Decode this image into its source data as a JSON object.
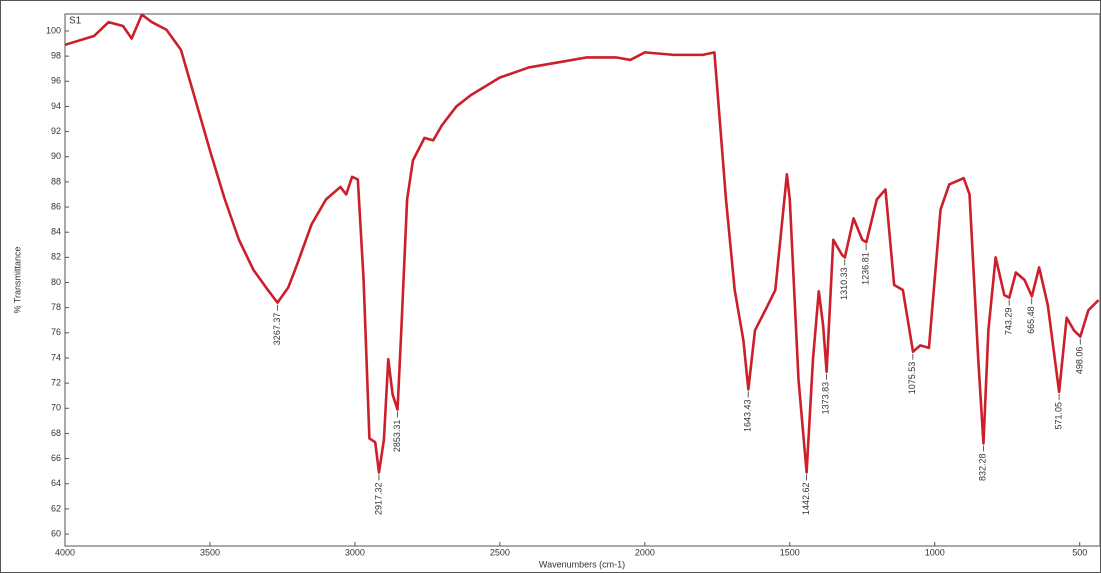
{
  "chart_data": {
    "type": "line",
    "title": "S1",
    "x_label": "Wavenumbers (cm-1)",
    "y_label": "% Transmittance",
    "x": [
      4000,
      3900,
      3850,
      3800,
      3770,
      3735,
      3700,
      3650,
      3600,
      3550,
      3500,
      3450,
      3400,
      3350,
      3300,
      3267,
      3230,
      3200,
      3150,
      3100,
      3050,
      3030,
      3010,
      2990,
      2970,
      2950,
      2930,
      2917,
      2900,
      2885,
      2870,
      2853,
      2840,
      2820,
      2800,
      2760,
      2730,
      2700,
      2650,
      2600,
      2500,
      2400,
      2300,
      2200,
      2100,
      2050,
      2000,
      1900,
      1800,
      1760,
      1720,
      1690,
      1660,
      1643,
      1620,
      1580,
      1550,
      1510,
      1500,
      1470,
      1442,
      1420,
      1400,
      1385,
      1373,
      1350,
      1320,
      1310,
      1280,
      1250,
      1236,
      1200,
      1170,
      1140,
      1110,
      1075,
      1050,
      1020,
      980,
      950,
      900,
      880,
      850,
      832,
      815,
      790,
      760,
      743,
      720,
      690,
      665,
      640,
      610,
      571,
      545,
      520,
      498,
      470,
      435
    ],
    "series": [
      {
        "name": "S1",
        "color": "#cc1f2a",
        "values": [
          98.9,
          99.6,
          100.7,
          100.4,
          99.4,
          101.3,
          100.7,
          100.1,
          98.5,
          94.5,
          90.5,
          86.7,
          83.4,
          81.0,
          79.4,
          78.4,
          79.6,
          81.4,
          84.6,
          86.6,
          87.6,
          87.0,
          88.4,
          88.2,
          80.2,
          67.6,
          67.3,
          64.9,
          67.5,
          73.9,
          71.1,
          69.9,
          76.2,
          86.6,
          89.7,
          91.5,
          91.3,
          92.5,
          94.0,
          94.9,
          96.3,
          97.1,
          97.5,
          97.9,
          97.9,
          97.7,
          98.3,
          98.1,
          98.1,
          98.3,
          86.6,
          79.4,
          75.4,
          71.5,
          76.2,
          78.0,
          79.4,
          88.6,
          86.6,
          72.3,
          64.9,
          73.9,
          79.3,
          76.6,
          72.9,
          83.4,
          82.2,
          82.0,
          85.1,
          83.4,
          83.2,
          86.6,
          87.4,
          79.8,
          79.4,
          74.5,
          75.0,
          74.8,
          85.8,
          87.8,
          88.3,
          87.0,
          73.9,
          67.2,
          76.2,
          82.0,
          79.0,
          78.8,
          80.8,
          80.2,
          78.9,
          81.2,
          78.2,
          71.3,
          77.2,
          76.2,
          75.7,
          77.8,
          78.6
        ]
      }
    ],
    "peaks": [
      {
        "x": 3267.37,
        "y": 78.4
      },
      {
        "x": 2917.32,
        "y": 64.9
      },
      {
        "x": 2853.31,
        "y": 69.9
      },
      {
        "x": 1643.43,
        "y": 71.5
      },
      {
        "x": 1442.62,
        "y": 64.9
      },
      {
        "x": 1373.83,
        "y": 72.9
      },
      {
        "x": 1310.33,
        "y": 82.0
      },
      {
        "x": 1236.81,
        "y": 83.2
      },
      {
        "x": 1075.53,
        "y": 74.5
      },
      {
        "x": 832.28,
        "y": 67.2
      },
      {
        "x": 743.29,
        "y": 78.8
      },
      {
        "x": 665.48,
        "y": 78.9
      },
      {
        "x": 571.05,
        "y": 71.3
      },
      {
        "x": 498.06,
        "y": 75.7
      }
    ],
    "xlim": [
      4000,
      430
    ],
    "ylim": [
      59.05,
      101.35
    ],
    "xticks": [
      4000,
      3500,
      3000,
      2500,
      2000,
      1500,
      1000,
      500
    ],
    "yticks": [
      60,
      62,
      64,
      66,
      68,
      70,
      72,
      74,
      76,
      78,
      80,
      82,
      84,
      86,
      88,
      90,
      92,
      94,
      96,
      98,
      100
    ],
    "grid": false
  }
}
